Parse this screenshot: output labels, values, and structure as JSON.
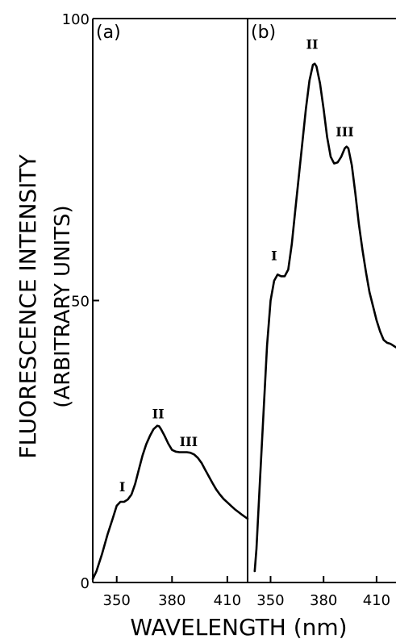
{
  "chart_data": [
    {
      "panel": "(a)",
      "type": "line",
      "xlim": [
        337,
        421
      ],
      "ylim": [
        0,
        100
      ],
      "x_ticks": [
        350,
        380,
        410
      ],
      "y_ticks": [
        0,
        50,
        100
      ],
      "x": [
        337,
        339,
        342,
        345,
        348,
        350,
        352,
        354,
        356,
        358,
        360,
        362,
        364,
        366,
        368,
        370,
        372,
        373,
        374,
        376,
        378,
        380,
        382,
        384,
        386,
        388,
        390,
        392,
        394,
        396,
        398,
        400,
        402,
        404,
        406,
        408,
        410,
        412,
        414,
        416,
        418,
        421
      ],
      "y": [
        0.6,
        2,
        5,
        8.5,
        11.5,
        13.6,
        14.3,
        14.3,
        14.7,
        15.6,
        17.5,
        20,
        22.5,
        24.5,
        26,
        27.2,
        27.8,
        27.7,
        27.2,
        26,
        24.6,
        23.5,
        23.2,
        23.1,
        23.1,
        23.1,
        23.0,
        22.7,
        22.1,
        21.2,
        20,
        18.8,
        17.6,
        16.5,
        15.6,
        14.8,
        14.2,
        13.6,
        13.0,
        12.5,
        12.0,
        11.3
      ],
      "peak_labels": [
        {
          "text": "I",
          "x": 353,
          "y": 15
        },
        {
          "text": "II",
          "x": 372.5,
          "y": 28
        },
        {
          "text": "III",
          "x": 389,
          "y": 23
        }
      ]
    },
    {
      "panel": "(b)",
      "type": "line",
      "xlim": [
        337,
        421
      ],
      "ylim": [
        0,
        100
      ],
      "x_ticks": [
        350,
        380,
        410
      ],
      "y_ticks": [
        0,
        50,
        100
      ],
      "x": [
        341,
        342,
        344,
        346,
        348,
        350,
        352,
        354,
        356,
        358,
        360,
        362,
        364,
        366,
        368,
        370,
        372,
        374,
        375,
        376,
        378,
        380,
        382,
        384,
        386,
        388,
        390,
        392,
        393,
        394,
        396,
        398,
        400,
        402,
        404,
        406,
        408,
        410,
        412,
        414,
        416,
        418,
        421
      ],
      "y": [
        2,
        6,
        18,
        30,
        42,
        50,
        53.5,
        54.6,
        54.3,
        54.3,
        55.5,
        60,
        66,
        72,
        78,
        84,
        89,
        91.8,
        92,
        91.5,
        88.5,
        84,
        79,
        75.5,
        74.3,
        74.5,
        75.5,
        77,
        77.3,
        77,
        74,
        69,
        63.5,
        59,
        55,
        51.5,
        49,
        46.5,
        44.5,
        43,
        42.5,
        42.3,
        41.7
      ],
      "peak_labels": [
        {
          "text": "I",
          "x": 352,
          "y": 56
        },
        {
          "text": "II",
          "x": 373.5,
          "y": 93.5
        },
        {
          "text": "III",
          "x": 392,
          "y": 78
        }
      ]
    }
  ],
  "axes": {
    "ylabel_line1": "FLUORESCENCE INTENSITY",
    "ylabel_line2": "(ARBITRARY UNITS)",
    "xlabel": "WAVELENGTH (nm)"
  }
}
